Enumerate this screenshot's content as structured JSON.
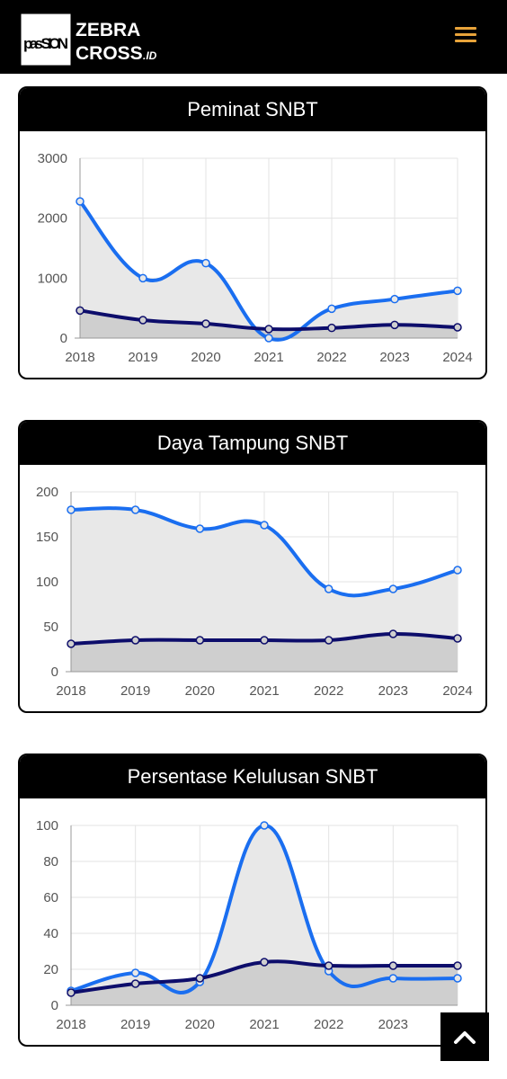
{
  "header": {
    "logo_mark": "pas SION",
    "brand_line1": "ZEBRA",
    "brand_line2": "CROSS",
    "brand_suffix": ".ID",
    "menu_icon": "hamburger-icon",
    "accent": "#e8a33a"
  },
  "scroll_top_icon": "chevron-up-icon",
  "colors": {
    "series_light": "#1a6ef0",
    "series_dark": "#0d0d6b",
    "fill_light": "#e8e8e8",
    "fill_dark": "#cfcfcf"
  },
  "chart_data": [
    {
      "type": "line",
      "title": "Peminat SNBT",
      "x": [
        "2018",
        "2019",
        "2020",
        "2021",
        "2022",
        "2023",
        "2024"
      ],
      "yticks": [
        "3000",
        "2000",
        "1000",
        "0"
      ],
      "ylim": [
        0,
        3000
      ],
      "grid": true,
      "series": [
        {
          "values": [
            2280,
            1000,
            1250,
            0,
            490,
            650,
            790
          ]
        },
        {
          "values": [
            460,
            300,
            240,
            150,
            170,
            220,
            180
          ]
        }
      ]
    },
    {
      "type": "line",
      "title": "Daya Tampung SNBT",
      "x": [
        "2018",
        "2019",
        "2020",
        "2021",
        "2022",
        "2023",
        "2024"
      ],
      "yticks": [
        "200",
        "150",
        "100",
        "50",
        "0"
      ],
      "ylim": [
        0,
        200
      ],
      "grid": true,
      "series": [
        {
          "values": [
            180,
            180,
            159,
            163,
            92,
            92,
            113
          ]
        },
        {
          "values": [
            31,
            35,
            35,
            35,
            35,
            42,
            37
          ]
        }
      ]
    },
    {
      "type": "line",
      "title": "Persentase Kelulusan SNBT",
      "x": [
        "2018",
        "2019",
        "2020",
        "2021",
        "2022",
        "2023",
        "2024"
      ],
      "yticks": [
        "100",
        "80",
        "60",
        "40",
        "20",
        "0"
      ],
      "ylim": [
        0,
        100
      ],
      "grid": true,
      "series": [
        {
          "values": [
            8,
            18,
            13,
            100,
            19,
            15,
            15
          ]
        },
        {
          "values": [
            7,
            12,
            15,
            24,
            22,
            22,
            22
          ]
        }
      ]
    }
  ]
}
